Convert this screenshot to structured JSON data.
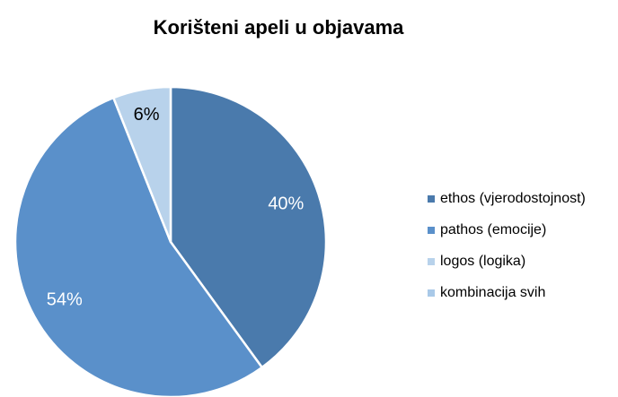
{
  "chart_data": {
    "type": "pie",
    "title": "Korišteni apeli u objavama",
    "categories": [
      "ethos (vjerodostojnost)",
      "pathos (emocije)",
      "logos (logika)",
      "kombinacija svih"
    ],
    "values": [
      40,
      54,
      6,
      0
    ],
    "value_labels": [
      "40%",
      "54%",
      "6%",
      null
    ],
    "colors": [
      "#4a7aac",
      "#5a90ca",
      "#b8d2eb",
      "#a9c9e8"
    ],
    "label_colors": [
      "#ffffff",
      "#ffffff",
      "#000000",
      "#000000"
    ],
    "legend": "right"
  }
}
